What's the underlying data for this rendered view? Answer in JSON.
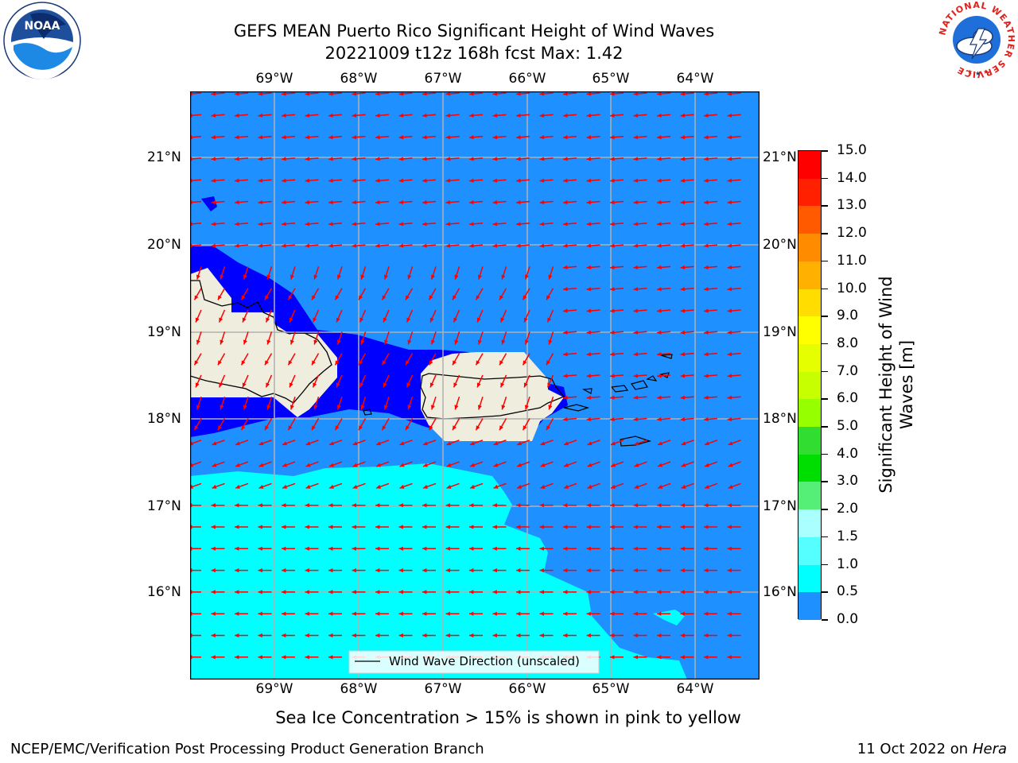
{
  "title": {
    "line1": "GEFS MEAN Puerto Rico Significant Height of Wind Waves",
    "line2": "20221009 t12z 168h fcst   Max: 1.42"
  },
  "map": {
    "lon_labels": [
      "69°W",
      "68°W",
      "67°W",
      "66°W",
      "65°W",
      "64°W"
    ],
    "lat_labels": [
      "21°N",
      "20°N",
      "19°N",
      "18°N",
      "17°N",
      "16°N"
    ],
    "legend_label": "Wind Wave Direction (unscaled)",
    "note": "Sea Ice Concentration > 15% is shown in pink to yellow",
    "colors": {
      "band_0_0_5": "#0000ff",
      "band_0_5_1_0": "#1e90ff",
      "band_1_0_1_5": "#00ffff",
      "land": "#efedde",
      "arrow": "#ff0000",
      "grid": "#b0b0b0"
    }
  },
  "colorbar": {
    "label": "Significant Height of Wind Waves [m]",
    "ticks": [
      "15.0",
      "14.0",
      "13.0",
      "12.0",
      "11.0",
      "10.0",
      "9.0",
      "8.0",
      "7.0",
      "6.0",
      "5.0",
      "4.0",
      "3.0",
      "2.0",
      "1.5",
      "1.0",
      "0.5",
      "0.0"
    ],
    "colors": [
      "#ff0000",
      "#ff2000",
      "#ff5a00",
      "#ff8c00",
      "#ffb000",
      "#ffdd00",
      "#ffff00",
      "#e6ff00",
      "#c8ff00",
      "#96ff00",
      "#32dd32",
      "#00dd00",
      "#55ee77",
      "#aaffff",
      "#55ffff",
      "#00ffff",
      "#1e90ff",
      "#0000ff"
    ]
  },
  "logos": {
    "noaa_text": "NOAA",
    "noaa_ring": "NATIONAL OCEANIC AND ATMOSPHERIC ADMINISTRATION · U.S. DEPARTMENT OF COMMERCE",
    "nws_ring": "NATIONAL WEATHER SERVICE"
  },
  "footer": {
    "left": "NCEP/EMC/Verification Post Processing Product Generation Branch",
    "date": "11 Oct 2022 on ",
    "machine": "Hera"
  }
}
